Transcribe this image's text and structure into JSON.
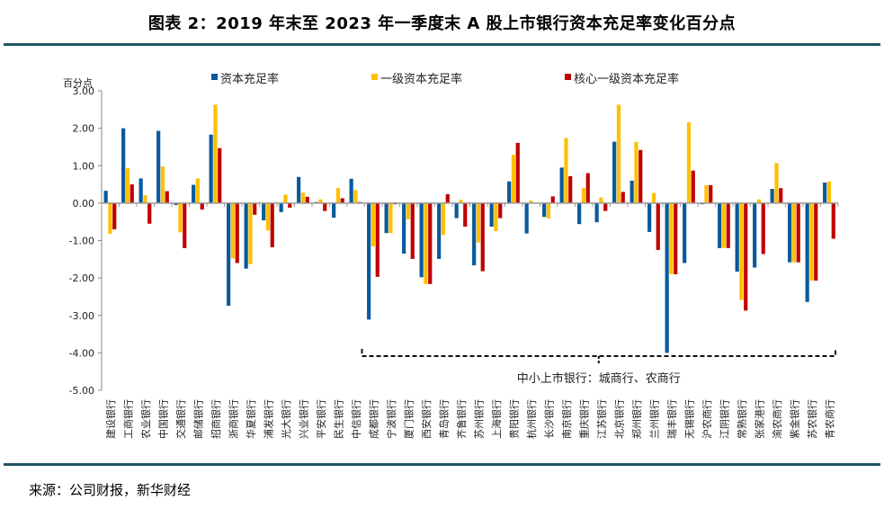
{
  "title": "图表 2：2019 年末至 2023 年一季度末 A 股上市银行资本充足率变化百分点",
  "source": "来源：公司财报，新华财经",
  "chart_data": {
    "type": "bar",
    "title": "图表 2：2019 年末至 2023 年一季度末 A 股上市银行资本充足率变化百分点",
    "ylabel": "百分点",
    "xlabel": "",
    "ylim": [
      -5,
      3
    ],
    "yticks": [
      3,
      2,
      1,
      0,
      -1,
      -2,
      -3,
      -4,
      -5
    ],
    "ytick_labels": [
      "3.00",
      "2.00",
      "1.00",
      "0.00",
      "-1.00",
      "-2.00",
      "-3.00",
      "-4.00",
      "-5.00"
    ],
    "grid": false,
    "legend_position": "top",
    "categories": [
      "建设银行",
      "工商银行",
      "农业银行",
      "中国银行",
      "交通银行",
      "邮储银行",
      "招商银行",
      "浙商银行",
      "华夏银行",
      "浦发银行",
      "光大银行",
      "兴业银行",
      "平安银行",
      "民生银行",
      "中信银行",
      "成都银行",
      "宁波银行",
      "厦门银行",
      "西安银行",
      "青岛银行",
      "齐鲁银行",
      "苏州银行",
      "上海银行",
      "贵阳银行",
      "杭州银行",
      "长沙银行",
      "南京银行",
      "重庆银行",
      "江苏银行",
      "北京银行",
      "郑州银行",
      "兰州银行",
      "瑞丰银行",
      "无锡银行",
      "沪农商行",
      "江阴银行",
      "常熟银行",
      "张家港行",
      "渝农商行",
      "紫金银行",
      "苏农银行",
      "青农商行"
    ],
    "series": [
      {
        "name": "资本充足率",
        "color": "#0a5a9c",
        "values": [
          0.33,
          2.0,
          0.66,
          1.93,
          -0.05,
          0.49,
          1.83,
          -2.74,
          -1.75,
          -0.46,
          -0.24,
          0.7,
          0.03,
          -0.39,
          0.65,
          -3.11,
          -0.8,
          -1.35,
          -1.98,
          -1.49,
          -0.4,
          -1.66,
          -0.63,
          0.58,
          -0.81,
          -0.37,
          0.95,
          -0.56,
          -0.51,
          1.64,
          0.6,
          -0.77,
          -4.0,
          -1.6,
          -0.03,
          -1.2,
          -1.83,
          -1.72,
          0.38,
          -1.58,
          -2.64,
          0.55
        ]
      },
      {
        "name": "一级资本充足率",
        "color": "#ffc000",
        "values": [
          -0.82,
          0.93,
          0.21,
          0.98,
          -0.78,
          0.66,
          2.63,
          -1.48,
          -1.63,
          -0.73,
          0.23,
          0.28,
          0.1,
          0.4,
          0.35,
          -1.15,
          -0.8,
          -0.43,
          -2.16,
          -0.85,
          0.09,
          -1.05,
          -0.75,
          1.29,
          0.07,
          -0.41,
          1.74,
          0.4,
          0.15,
          2.63,
          1.64,
          0.27,
          -1.9,
          2.16,
          0.48,
          -1.2,
          -2.59,
          0.1,
          1.07,
          -1.58,
          -2.07,
          0.58
        ]
      },
      {
        "name": "核心一级资本充足率",
        "color": "#c00000",
        "values": [
          -0.7,
          0.5,
          -0.55,
          0.32,
          -1.2,
          -0.17,
          1.47,
          -1.6,
          -0.31,
          -1.18,
          -0.12,
          0.17,
          -0.21,
          0.13,
          0.03,
          -1.97,
          -0.03,
          -1.49,
          -2.16,
          0.24,
          -0.63,
          -1.82,
          -0.4,
          1.61,
          0.0,
          0.18,
          0.72,
          0.8,
          -0.21,
          0.3,
          1.42,
          -1.25,
          -1.9,
          0.87,
          0.48,
          -1.2,
          -2.87,
          -1.36,
          0.4,
          -1.58,
          -2.07,
          -0.95
        ]
      }
    ],
    "annotation": {
      "text": "中小上市银行：城商行、农商行",
      "bracket_from": "成都银行",
      "bracket_to": "青农商行"
    }
  }
}
